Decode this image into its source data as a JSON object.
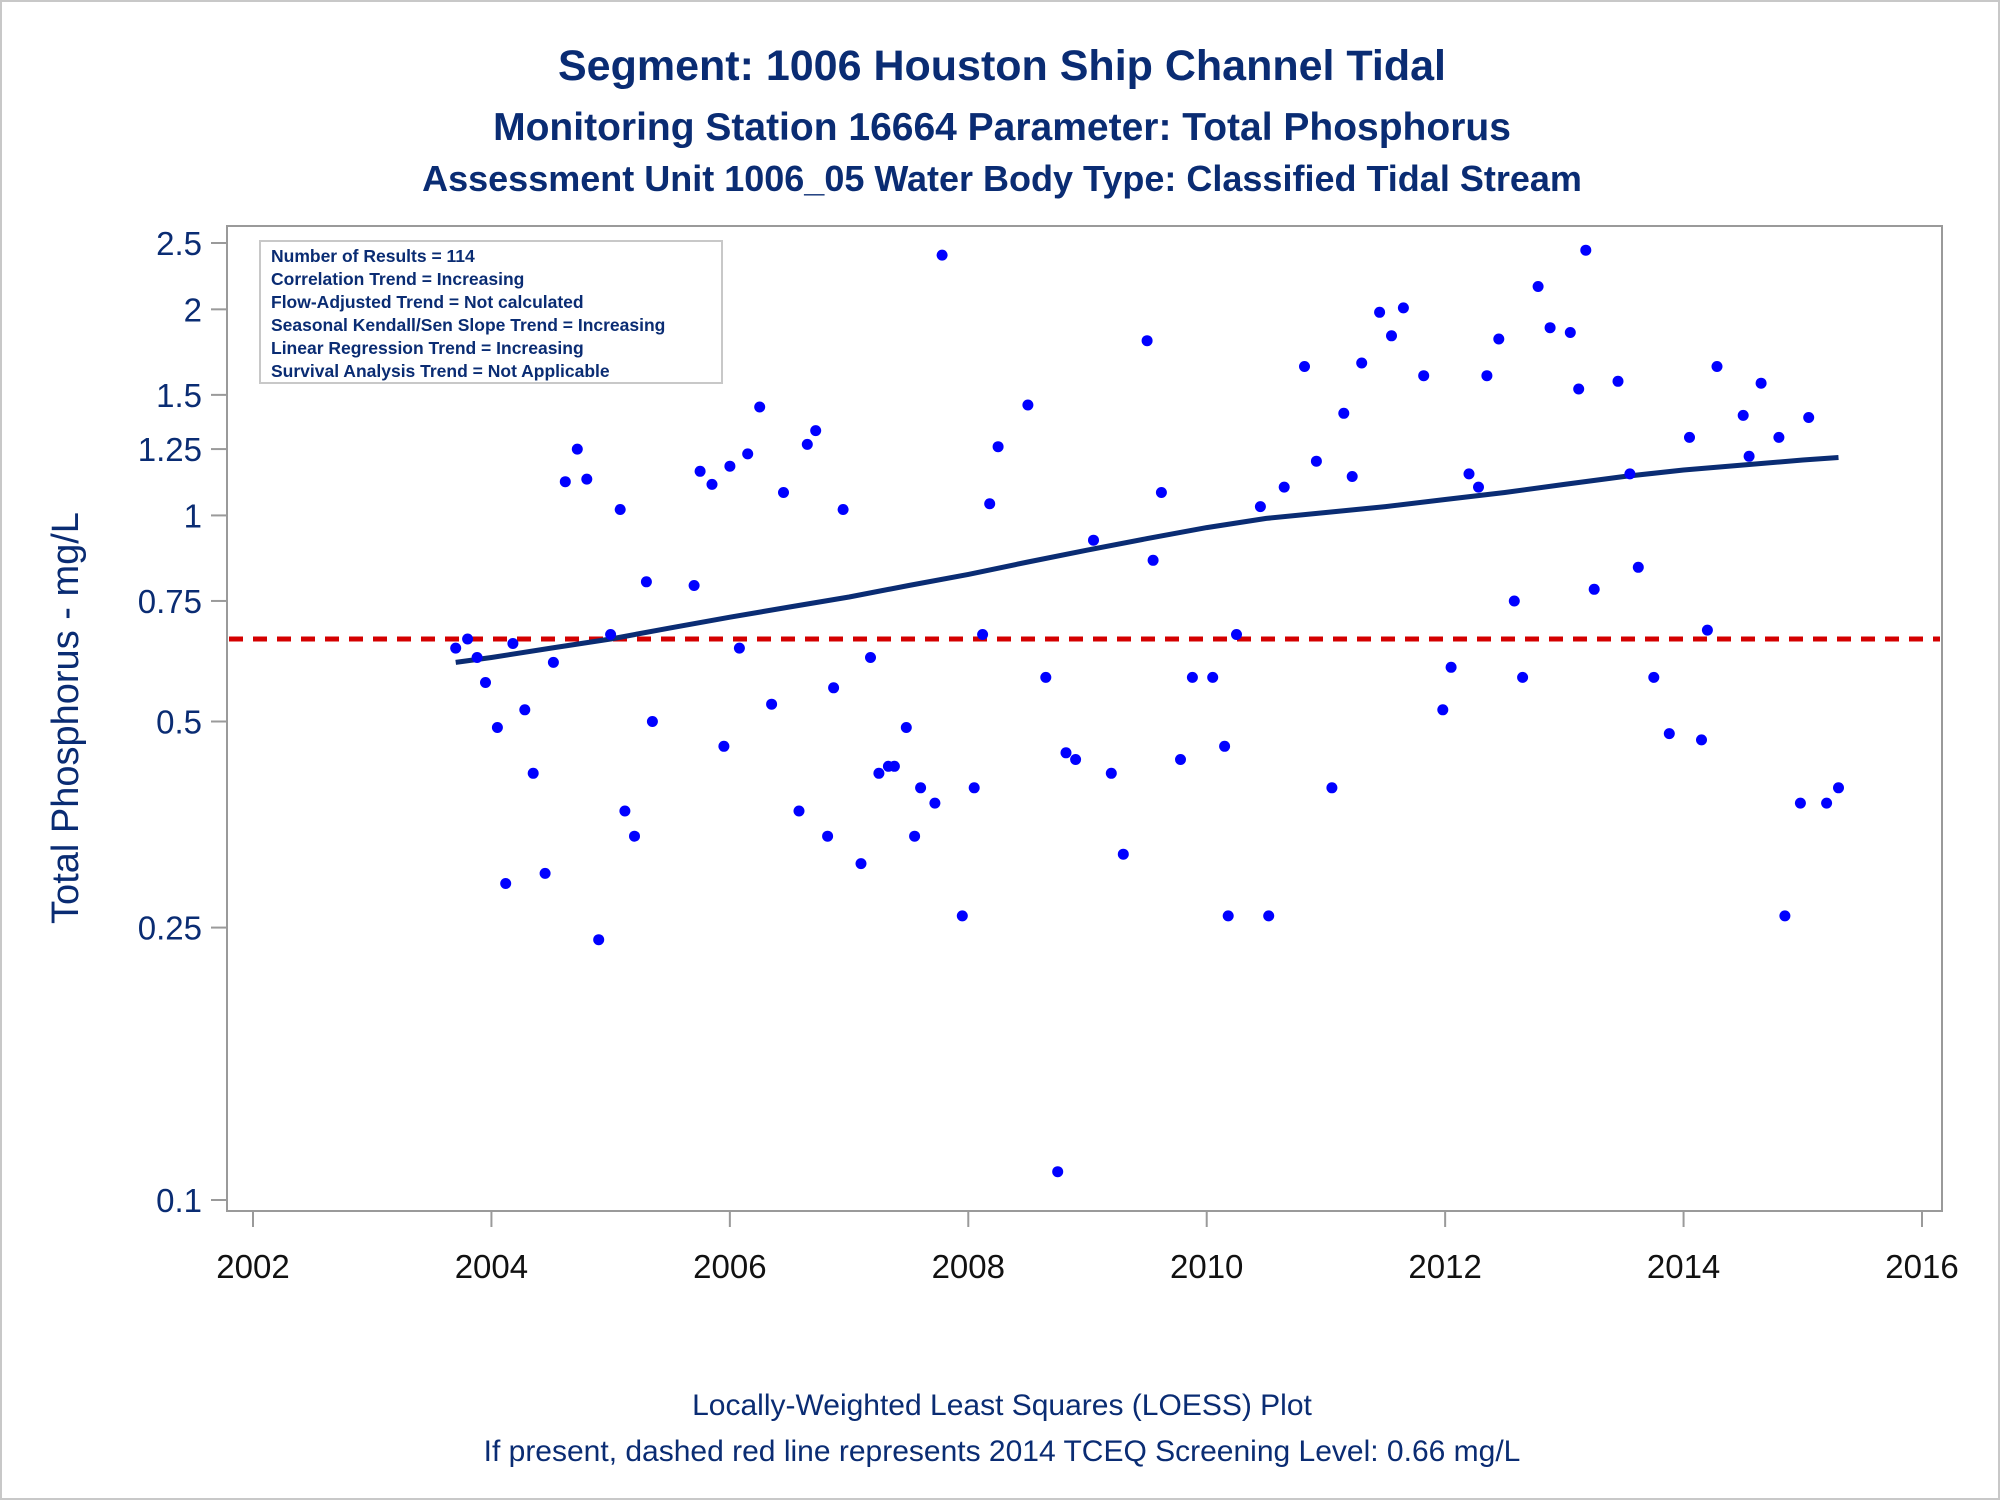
{
  "chart_data": {
    "type": "scatter",
    "title": "Segment: 1006  Houston Ship Channel Tidal",
    "subtitle": "Monitoring Station 16664 Parameter: Total Phosphorus",
    "subtitle2": "Assessment Unit 1006_05   Water Body Type: Classified Tidal Stream",
    "xlabel": "",
    "ylabel": "Total Phosphorus - mg/L",
    "xlim": [
      2002,
      2016
    ],
    "ylim": [
      0.1,
      2.5
    ],
    "yscale": "log",
    "x_ticks": [
      2002,
      2004,
      2006,
      2008,
      2010,
      2012,
      2014,
      2016
    ],
    "y_ticks": [
      0.1,
      0.25,
      0.5,
      0.75,
      1,
      1.25,
      1.5,
      2,
      2.5
    ],
    "y_tick_labels": [
      "0.1",
      "0.25",
      "0.5",
      "0.75",
      "1",
      "1.25",
      "1.5",
      "2",
      "2.5"
    ],
    "grid": false,
    "annotation_box": {
      "placement": "top-left",
      "lines": [
        "Number of Results = 114",
        "Correlation Trend = Increasing",
        "Flow-Adjusted Trend = Not calculated",
        "Seasonal Kendall/Sen Slope Trend = Increasing",
        "Linear Regression Trend = Increasing",
        "Survival Analysis Trend = Not Applicable"
      ]
    },
    "footnotes": [
      "Locally-Weighted Least Squares (LOESS) Plot",
      "If present, dashed red line represents 2014 TCEQ Screening Level: 0.66 mg/L"
    ],
    "reference_line": {
      "y": 0.66,
      "color": "#d40000",
      "style": "dashed"
    },
    "colors": {
      "points": "#0000ff",
      "trend": "#0a2c73",
      "text": "#0a2c73",
      "frame": "#9a9a9a"
    },
    "trend_line": {
      "x": [
        2003.7,
        2004.0,
        2004.5,
        2005.0,
        2005.5,
        2006.0,
        2006.5,
        2007.0,
        2007.5,
        2008.0,
        2008.5,
        2009.0,
        2009.5,
        2010.0,
        2010.5,
        2011.0,
        2011.5,
        2012.0,
        2012.5,
        2013.0,
        2013.5,
        2014.0,
        2014.5,
        2015.0,
        2015.3
      ],
      "y": [
        0.61,
        0.62,
        0.64,
        0.66,
        0.685,
        0.71,
        0.735,
        0.76,
        0.79,
        0.82,
        0.855,
        0.89,
        0.925,
        0.96,
        0.99,
        1.01,
        1.03,
        1.055,
        1.08,
        1.11,
        1.14,
        1.165,
        1.185,
        1.205,
        1.215
      ]
    },
    "series": [
      {
        "x": [
          2003.7,
          2003.8,
          2003.88,
          2003.95,
          2004.05,
          2004.12,
          2004.18,
          2004.28,
          2004.35,
          2004.45,
          2004.52,
          2004.62,
          2004.72,
          2004.8,
          2004.9,
          2005.0,
          2005.08,
          2005.12,
          2005.2,
          2005.3,
          2005.35,
          2005.7,
          2005.75,
          2005.85,
          2005.95,
          2006.0,
          2006.08,
          2006.15,
          2006.25,
          2006.35,
          2006.45,
          2006.58,
          2006.65,
          2006.72,
          2006.82,
          2006.87,
          2006.95,
          2007.1,
          2007.18,
          2007.25,
          2007.33,
          2007.38,
          2007.48,
          2007.55,
          2007.6,
          2007.72,
          2007.78,
          2007.95,
          2008.05,
          2008.12,
          2008.18,
          2008.25,
          2008.5,
          2008.65,
          2008.75,
          2008.82,
          2008.9,
          2009.05,
          2009.2,
          2009.3,
          2009.5,
          2009.55,
          2009.62,
          2009.78,
          2009.88,
          2010.05,
          2010.15,
          2010.18,
          2010.25,
          2010.45,
          2010.52,
          2010.65,
          2010.82,
          2010.92,
          2011.05,
          2011.15,
          2011.22,
          2011.3,
          2011.45,
          2011.55,
          2011.65,
          2011.82,
          2011.98,
          2012.05,
          2012.2,
          2012.28,
          2012.35,
          2012.45,
          2012.58,
          2012.65,
          2012.78,
          2012.88,
          2013.05,
          2013.12,
          2013.18,
          2013.25,
          2013.45,
          2013.55,
          2013.62,
          2013.75,
          2013.88,
          2014.05,
          2014.15,
          2014.2,
          2014.28,
          2014.5,
          2014.55,
          2014.65,
          2014.8,
          2014.85,
          2014.98,
          2015.05,
          2015.2,
          2015.3
        ],
        "y": [
          0.64,
          0.66,
          0.62,
          0.57,
          0.49,
          0.29,
          0.65,
          0.52,
          0.42,
          0.3,
          0.61,
          1.12,
          1.25,
          1.13,
          0.24,
          0.67,
          1.02,
          0.37,
          0.34,
          0.8,
          0.5,
          0.79,
          1.16,
          1.11,
          0.46,
          1.18,
          0.64,
          1.23,
          1.44,
          0.53,
          1.08,
          0.37,
          1.27,
          1.33,
          0.34,
          0.56,
          1.02,
          0.31,
          0.62,
          0.42,
          0.43,
          0.43,
          0.49,
          0.34,
          0.4,
          0.38,
          2.4,
          0.26,
          0.4,
          0.67,
          1.04,
          1.26,
          1.45,
          0.58,
          0.11,
          0.45,
          0.44,
          0.92,
          0.42,
          0.32,
          1.8,
          0.86,
          1.08,
          0.44,
          0.58,
          0.58,
          0.46,
          0.26,
          0.67,
          1.03,
          0.26,
          1.1,
          1.65,
          1.2,
          0.4,
          1.41,
          1.14,
          1.67,
          1.98,
          1.83,
          2.01,
          1.6,
          0.52,
          0.6,
          1.15,
          1.1,
          1.6,
          1.81,
          0.75,
          0.58,
          2.16,
          1.88,
          1.85,
          1.53,
          2.44,
          0.78,
          1.57,
          1.15,
          0.84,
          0.58,
          0.48,
          1.3,
          0.47,
          0.68,
          1.65,
          1.4,
          1.22,
          1.56,
          1.3,
          0.26,
          0.38,
          1.39,
          0.38,
          0.4
        ]
      }
    ]
  }
}
